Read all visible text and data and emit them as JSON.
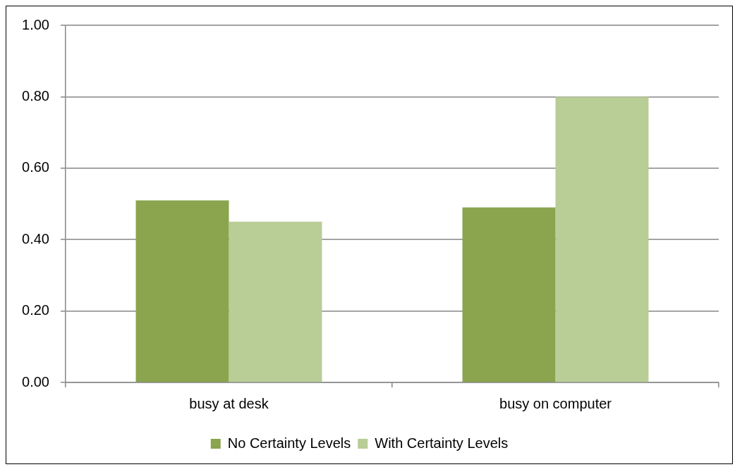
{
  "chart_data": {
    "type": "bar",
    "categories": [
      "busy at desk",
      "busy on computer"
    ],
    "series": [
      {
        "name": "No Certainty Levels",
        "color": "#8aa54e",
        "values": [
          0.51,
          0.49
        ]
      },
      {
        "name": "With Certainty Levels",
        "color": "#b9cd96",
        "values": [
          0.45,
          0.8
        ]
      }
    ],
    "ylim": [
      0,
      1
    ],
    "yticks": [
      {
        "value": 0,
        "label": "0.00"
      },
      {
        "value": 0.2,
        "label": "0.20"
      },
      {
        "value": 0.4,
        "label": "0.40"
      },
      {
        "value": 0.6,
        "label": "0.60"
      },
      {
        "value": 0.8,
        "label": "0.80"
      },
      {
        "value": 1,
        "label": "1.00"
      }
    ],
    "grid": "y",
    "legend": "bottom"
  }
}
